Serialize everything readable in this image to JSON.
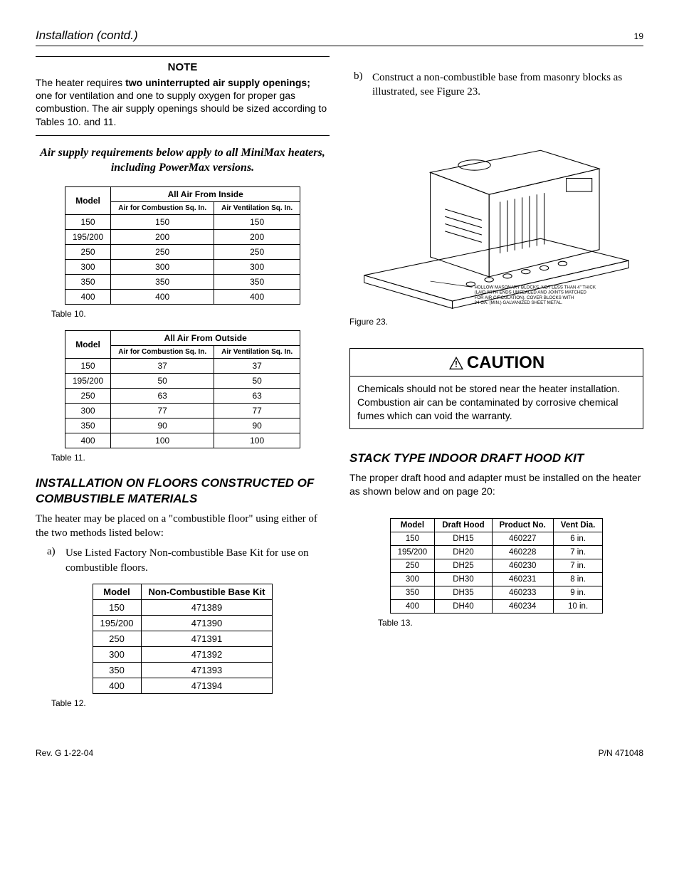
{
  "header": {
    "title": "Installation (contd.)",
    "page": "19"
  },
  "note": {
    "title": "NOTE",
    "pre": "The heater requires ",
    "bold": "two uninterrupted air supply openings;",
    "post": " one for ventilation and one to supply oxygen for proper gas combustion. The air supply openings should be sized according to Tables 10. and 11."
  },
  "italic_line": "Air supply requirements below apply to all MiniMax heaters, including PowerMax versions.",
  "table10": {
    "group_head": "All Air From Inside",
    "headers": [
      "Model",
      "Air for Combustion Sq. In.",
      "Air Ventilation Sq. In."
    ],
    "rows": [
      [
        "150",
        "150",
        "150"
      ],
      [
        "195/200",
        "200",
        "200"
      ],
      [
        "250",
        "250",
        "250"
      ],
      [
        "300",
        "300",
        "300"
      ],
      [
        "350",
        "350",
        "350"
      ],
      [
        "400",
        "400",
        "400"
      ]
    ],
    "caption": "Table 10."
  },
  "table11": {
    "group_head": "All Air From Outside",
    "headers": [
      "Model",
      "Air for Combustion Sq. In.",
      "Air Ventilation Sq. In."
    ],
    "rows": [
      [
        "150",
        "37",
        "37"
      ],
      [
        "195/200",
        "50",
        "50"
      ],
      [
        "250",
        "63",
        "63"
      ],
      [
        "300",
        "77",
        "77"
      ],
      [
        "350",
        "90",
        "90"
      ],
      [
        "400",
        "100",
        "100"
      ]
    ],
    "caption": "Table 11."
  },
  "section_floors": {
    "heading": "INSTALLATION ON FLOORS CONSTRUCTED OF COMBUSTIBLE MATERIALS",
    "body": "The heater may be placed on a \"combustible floor\" using either of the two methods listed below:",
    "item_a": "Use Listed Factory Non-combustible Base Kit for use on combustible floors.",
    "item_b": "Construct a non-combustible base from masonry blocks as illustrated, see Figure 23."
  },
  "table12": {
    "headers": [
      "Model",
      "Non-Combustible Base Kit"
    ],
    "rows": [
      [
        "150",
        "471389"
      ],
      [
        "195/200",
        "471390"
      ],
      [
        "250",
        "471391"
      ],
      [
        "300",
        "471392"
      ],
      [
        "350",
        "471393"
      ],
      [
        "400",
        "471394"
      ]
    ],
    "caption": "Table 12."
  },
  "figure23": {
    "caption": "Figure 23.",
    "note_lines": [
      "HOLLOW MASONARY BLOCKS, NOT LESS THAN 4\" THICK",
      "(LAID WITH ENDS UNSEALED AND JOINTS MATCHED",
      "FOR AIR CIRCULATION). COVER BLOCKS WITH",
      "24 GA. (MIN.) GALVANIZED SHEET METAL."
    ]
  },
  "caution": {
    "title": "CAUTION",
    "body": "Chemicals should not be stored near the heater installation.  Combustion air can be contaminated by corrosive chemical fumes which can void the warranty."
  },
  "section_stack": {
    "heading": "STACK TYPE INDOOR DRAFT HOOD KIT",
    "body": "The proper draft hood and adapter must be installed on the heater as shown below and on page 20:"
  },
  "table13": {
    "headers": [
      "Model",
      "Draft Hood",
      "Product No.",
      "Vent Dia."
    ],
    "rows": [
      [
        "150",
        "DH15",
        "460227",
        "6 in."
      ],
      [
        "195/200",
        "DH20",
        "460228",
        "7 in."
      ],
      [
        "250",
        "DH25",
        "460230",
        "7 in."
      ],
      [
        "300",
        "DH30",
        "460231",
        "8 in."
      ],
      [
        "350",
        "DH35",
        "460233",
        "9 in."
      ],
      [
        "400",
        "DH40",
        "460234",
        "10 in."
      ]
    ],
    "caption": "Table 13."
  },
  "footer": {
    "left": "Rev. G  1-22-04",
    "right": "P/N  471048"
  }
}
